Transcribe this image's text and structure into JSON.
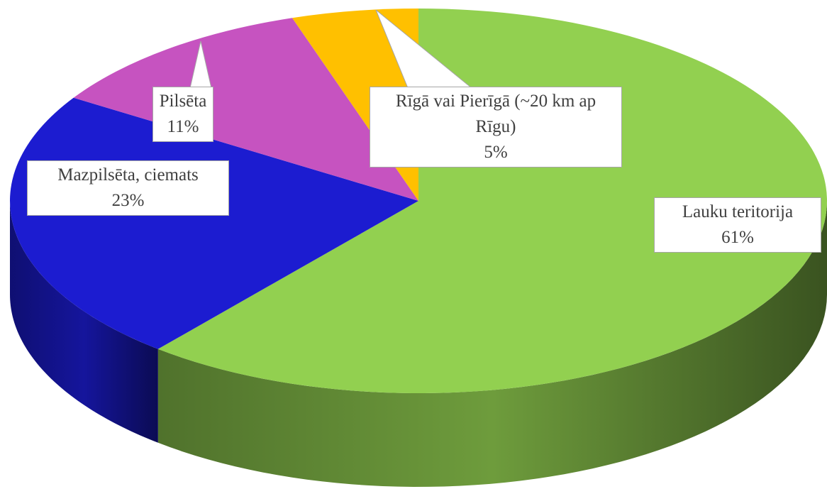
{
  "chart_data": {
    "type": "pie3d",
    "categories": [
      "Lauku teritorija",
      "Mazpilsēta, ciemats",
      "Pilsēta",
      "Rīgā vai Pierīgā (~20 km ap Rīgu)"
    ],
    "values": [
      61,
      23,
      11,
      5
    ],
    "value_labels": [
      "61%",
      "23%",
      "11%",
      "5%"
    ],
    "colors": [
      "#92d050",
      "#1c1cd0",
      "#c653c0",
      "#ffc000"
    ]
  }
}
